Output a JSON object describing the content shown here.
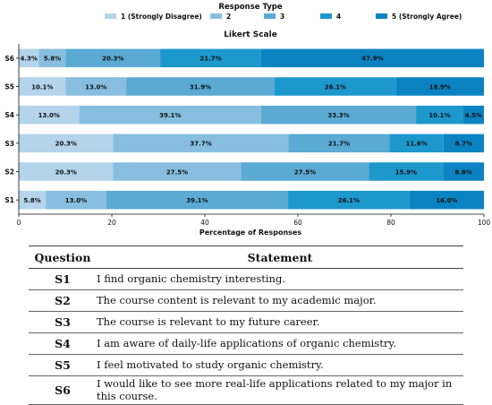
{
  "chart_data": {
    "type": "bar",
    "orientation": "horizontal",
    "stacked": true,
    "title": "Likert Scale",
    "xlabel": "Percentage of Responses",
    "ylabel": "",
    "xlim": [
      0,
      100
    ],
    "xticks": [
      "0",
      "20",
      "40",
      "60",
      "80",
      "100"
    ],
    "legend_title": "Response Type",
    "legend_position": "top",
    "grid": false,
    "categories": [
      "S1",
      "S2",
      "S3",
      "S4",
      "S5",
      "S6"
    ],
    "series": [
      {
        "name": "1 (Strongly Disagree)",
        "color": "#b3d4ea",
        "values": [
          5.8,
          20.3,
          20.3,
          13.0,
          10.1,
          4.3
        ],
        "labels": [
          "5.8%",
          "20.3%",
          "20.3%",
          "13.0%",
          "10.1%",
          "4.3%"
        ]
      },
      {
        "name": "2",
        "color": "#87bedf",
        "values": [
          13.0,
          27.5,
          37.7,
          39.1,
          13.0,
          5.8
        ],
        "labels": [
          "13.0%",
          "27.5%",
          "37.7%",
          "39.1%",
          "13.0%",
          "5.8%"
        ]
      },
      {
        "name": "3",
        "color": "#5aaad4",
        "values": [
          39.1,
          27.5,
          21.7,
          33.3,
          31.9,
          20.3
        ],
        "labels": [
          "39.1%",
          "27.5%",
          "21.7%",
          "33.3%",
          "31.9%",
          "20.3%"
        ]
      },
      {
        "name": "4",
        "color": "#1c98cd",
        "values": [
          26.1,
          15.9,
          11.6,
          10.1,
          26.1,
          21.7
        ],
        "labels": [
          "26.1%",
          "15.9%",
          "11.6%",
          "10.1%",
          "26.1%",
          "21.7%"
        ]
      },
      {
        "name": "5 (Strongly Agree)",
        "color": "#0b83c2",
        "values": [
          16.0,
          8.8,
          8.7,
          4.5,
          18.9,
          47.9
        ],
        "labels": [
          "16.0%",
          "8.8%",
          "8.7%",
          "4.5%",
          "18.9%",
          "47.9%"
        ]
      }
    ]
  },
  "table": {
    "headers": {
      "question": "Question",
      "statement": "Statement"
    },
    "rows": [
      {
        "id": "S1",
        "statement": "I find organic chemistry interesting."
      },
      {
        "id": "S2",
        "statement": "The course content is relevant to my academic major."
      },
      {
        "id": "S3",
        "statement": "The course is relevant to my future career."
      },
      {
        "id": "S4",
        "statement": "I am aware of daily-life applications of organic chemistry."
      },
      {
        "id": "S5",
        "statement": "I feel motivated to study organic chemistry."
      },
      {
        "id": "S6",
        "statement": "I would like to see more real-life applications related to my major in this course."
      }
    ]
  }
}
